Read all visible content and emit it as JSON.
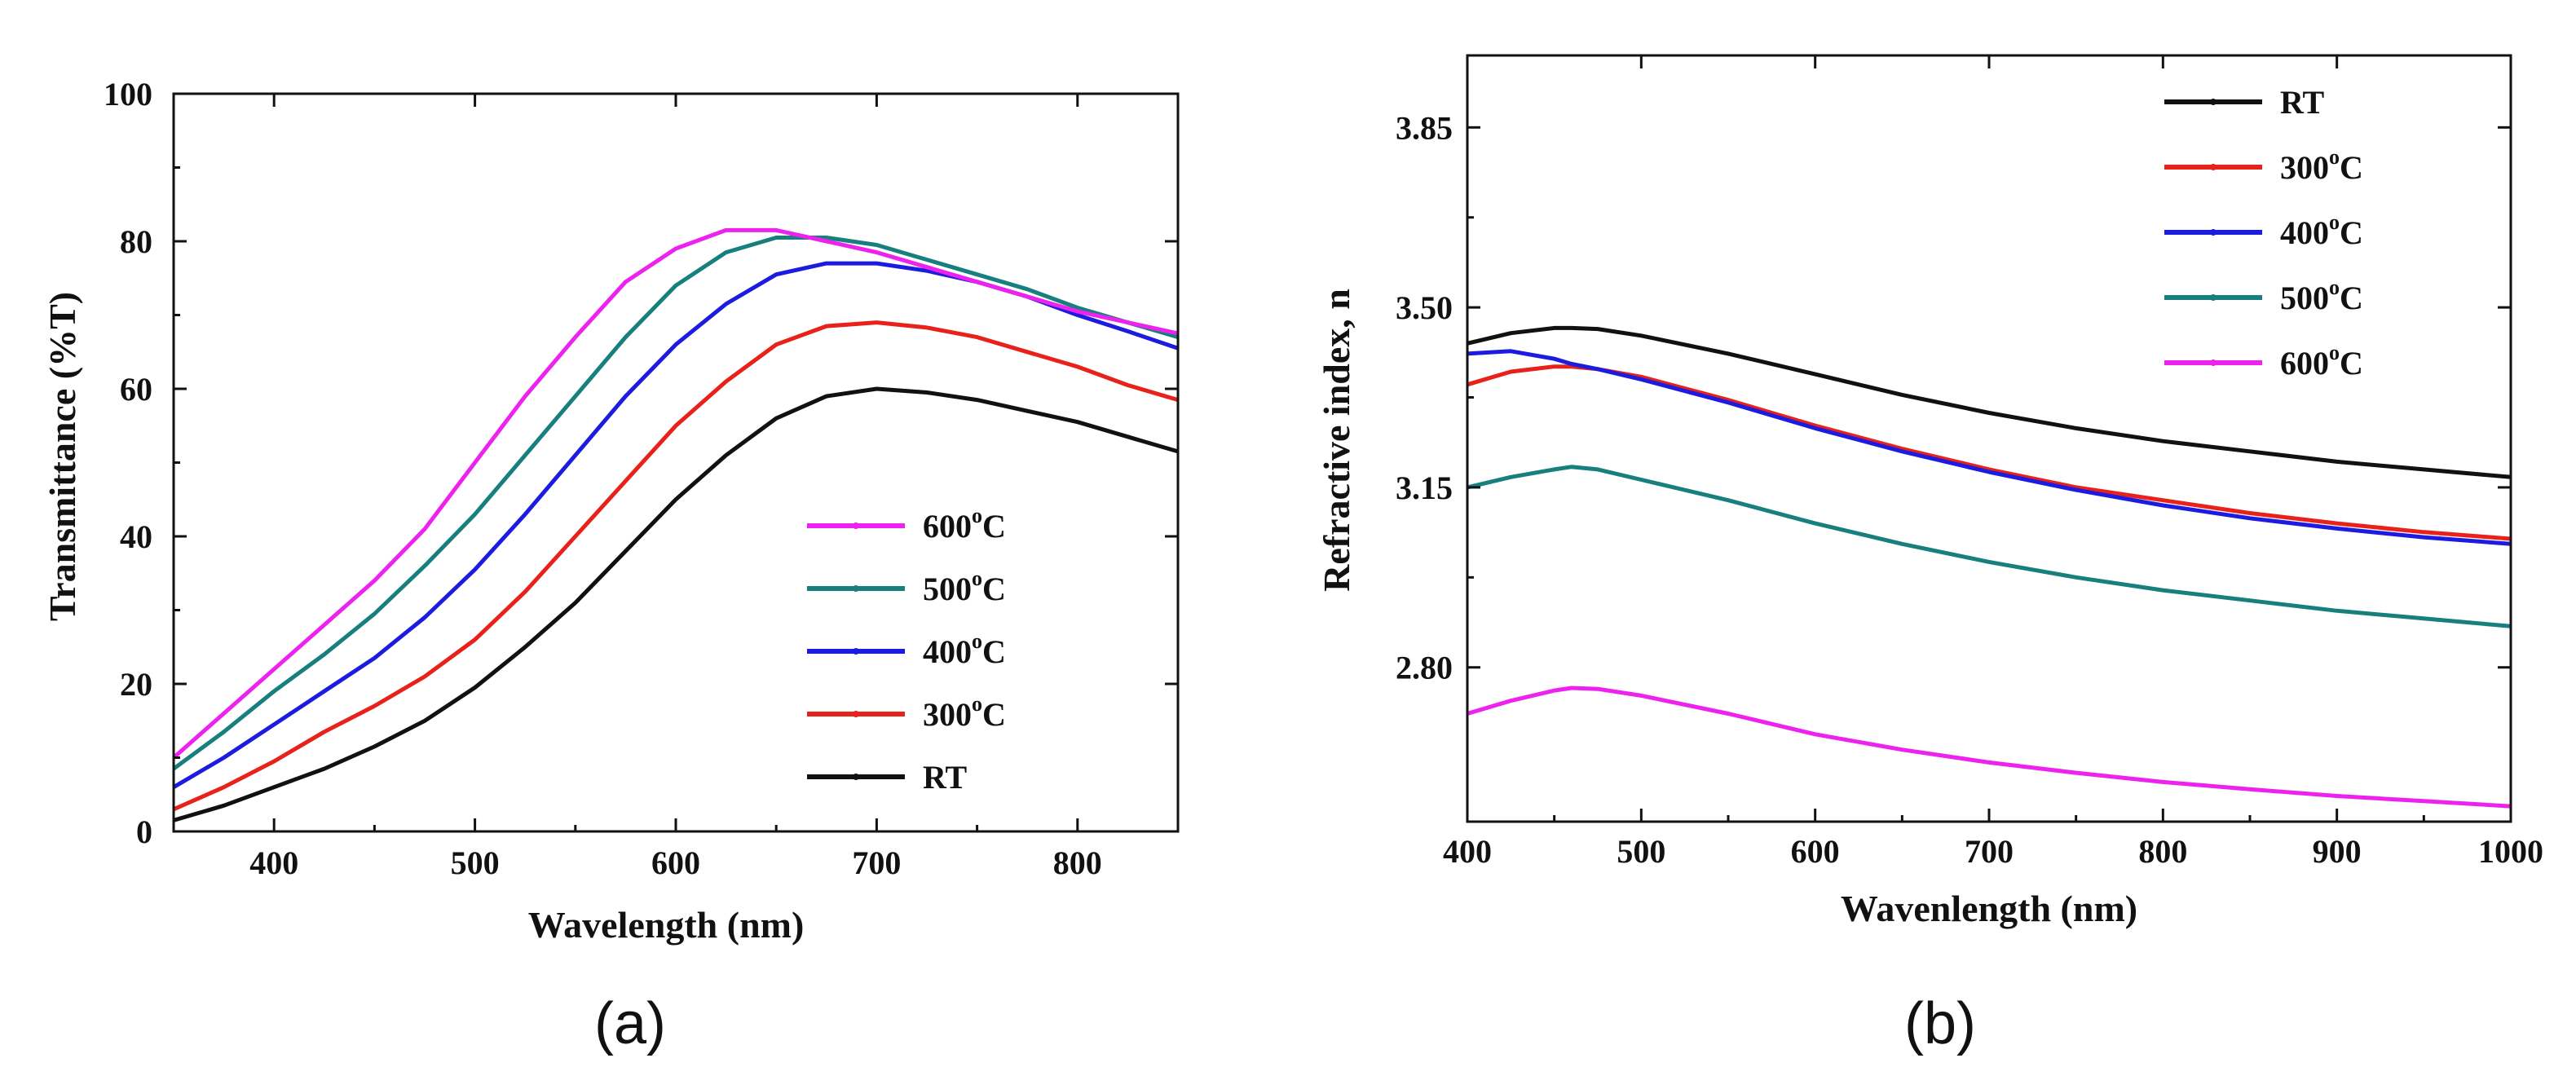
{
  "chart_data": [
    {
      "panel": "(a)",
      "type": "line",
      "xlabel": "Wavelength (nm)",
      "ylabel": "Transmittance (%T)",
      "xlim": [
        350,
        850
      ],
      "ylim": [
        0,
        100
      ],
      "xticks": [
        400,
        500,
        600,
        700,
        800
      ],
      "yticks": [
        0,
        20,
        40,
        60,
        80,
        100
      ],
      "legend_position": "lower-right",
      "legend_order": [
        "600",
        "500",
        "400",
        "300",
        "RT"
      ],
      "series": [
        {
          "key": "RT",
          "name": "RT",
          "sup": "",
          "unit": "",
          "color": "#111111",
          "x": [
            350,
            375,
            400,
            425,
            450,
            475,
            500,
            525,
            550,
            575,
            600,
            625,
            650,
            675,
            700,
            725,
            750,
            775,
            800,
            825,
            850
          ],
          "y": [
            1.5,
            3.5,
            6,
            8.5,
            11.5,
            15,
            19.5,
            25,
            31,
            38,
            45,
            51,
            56,
            59,
            60,
            59.5,
            58.5,
            57,
            55.5,
            53.5,
            51.5
          ]
        },
        {
          "key": "300",
          "name": "300",
          "sup": "o",
          "unit": "C",
          "color": "#e8211a",
          "x": [
            350,
            375,
            400,
            425,
            450,
            475,
            500,
            525,
            550,
            575,
            600,
            625,
            650,
            675,
            700,
            725,
            750,
            775,
            800,
            825,
            850
          ],
          "y": [
            3,
            6,
            9.5,
            13.5,
            17,
            21,
            26,
            32.5,
            40,
            47.5,
            55,
            61,
            66,
            68.5,
            69,
            68.3,
            67,
            65,
            63,
            60.5,
            58.5
          ]
        },
        {
          "key": "400",
          "name": "400",
          "sup": "o",
          "unit": "C",
          "color": "#1c1ce0",
          "x": [
            350,
            375,
            400,
            425,
            450,
            475,
            500,
            525,
            550,
            575,
            600,
            625,
            650,
            675,
            700,
            725,
            750,
            775,
            800,
            825,
            850
          ],
          "y": [
            6,
            10,
            14.5,
            19,
            23.5,
            29,
            35.5,
            43,
            51,
            59,
            66,
            71.5,
            75.5,
            77,
            77,
            76,
            74.5,
            72.5,
            70,
            67.8,
            65.5
          ]
        },
        {
          "key": "500",
          "name": "500",
          "sup": "o",
          "unit": "C",
          "color": "#17807f",
          "x": [
            350,
            375,
            400,
            425,
            450,
            475,
            500,
            525,
            550,
            575,
            600,
            625,
            650,
            675,
            700,
            725,
            750,
            775,
            800,
            825,
            850
          ],
          "y": [
            8.5,
            13.5,
            19,
            24,
            29.5,
            36,
            43,
            51,
            59,
            67,
            74,
            78.5,
            80.5,
            80.5,
            79.5,
            77.5,
            75.5,
            73.5,
            71,
            69,
            67
          ]
        },
        {
          "key": "600",
          "name": "600",
          "sup": "o",
          "unit": "C",
          "color": "#ee22ee",
          "x": [
            350,
            375,
            400,
            425,
            450,
            475,
            500,
            525,
            550,
            575,
            600,
            625,
            650,
            675,
            700,
            725,
            750,
            775,
            800,
            825,
            850
          ],
          "y": [
            10,
            16,
            22,
            28,
            34,
            41,
            50,
            59,
            67,
            74.5,
            79,
            81.5,
            81.5,
            80,
            78.5,
            76.5,
            74.5,
            72.5,
            70.5,
            69,
            67.5
          ]
        }
      ]
    },
    {
      "panel": "(b)",
      "type": "line",
      "xlabel": "Wavenlength (nm)",
      "ylabel": "Refractive index, n",
      "xlim": [
        400,
        1000
      ],
      "ylim": [
        2.5,
        3.99
      ],
      "xticks": [
        400,
        500,
        600,
        700,
        800,
        900,
        1000
      ],
      "yticks": [
        2.8,
        3.15,
        3.5,
        3.85
      ],
      "ytick_labels": [
        "2.80",
        "3.15",
        "3.50",
        "3.85"
      ],
      "legend_position": "top-right",
      "legend_order": [
        "RT",
        "300",
        "400",
        "500",
        "600"
      ],
      "series": [
        {
          "key": "RT",
          "name": "RT",
          "sup": "",
          "unit": "",
          "color": "#111111",
          "x": [
            400,
            425,
            450,
            460,
            475,
            500,
            550,
            600,
            650,
            700,
            750,
            800,
            850,
            900,
            950,
            1000
          ],
          "y": [
            3.43,
            3.45,
            3.46,
            3.46,
            3.458,
            3.445,
            3.41,
            3.37,
            3.33,
            3.295,
            3.265,
            3.24,
            3.22,
            3.2,
            3.185,
            3.17
          ]
        },
        {
          "key": "300",
          "name": "300",
          "sup": "o",
          "unit": "C",
          "color": "#e8211a",
          "x": [
            400,
            425,
            450,
            460,
            475,
            500,
            550,
            600,
            650,
            700,
            750,
            800,
            850,
            900,
            950,
            1000
          ],
          "y": [
            3.35,
            3.375,
            3.385,
            3.385,
            3.38,
            3.365,
            3.32,
            3.27,
            3.225,
            3.185,
            3.15,
            3.125,
            3.1,
            3.08,
            3.063,
            3.05
          ]
        },
        {
          "key": "400",
          "name": "400",
          "sup": "o",
          "unit": "C",
          "color": "#1c1ce0",
          "x": [
            400,
            425,
            450,
            460,
            475,
            500,
            550,
            600,
            650,
            700,
            750,
            800,
            850,
            900,
            950,
            1000
          ],
          "y": [
            3.41,
            3.415,
            3.4,
            3.39,
            3.38,
            3.36,
            3.315,
            3.265,
            3.22,
            3.18,
            3.145,
            3.115,
            3.09,
            3.07,
            3.053,
            3.04
          ]
        },
        {
          "key": "500",
          "name": "500",
          "sup": "o",
          "unit": "C",
          "color": "#17807f",
          "x": [
            400,
            425,
            450,
            460,
            475,
            500,
            550,
            600,
            650,
            700,
            750,
            800,
            850,
            900,
            950,
            1000
          ],
          "y": [
            3.15,
            3.17,
            3.185,
            3.19,
            3.185,
            3.165,
            3.125,
            3.08,
            3.04,
            3.005,
            2.975,
            2.95,
            2.93,
            2.91,
            2.895,
            2.88
          ]
        },
        {
          "key": "600",
          "name": "600",
          "sup": "o",
          "unit": "C",
          "color": "#ee22ee",
          "x": [
            400,
            425,
            450,
            460,
            475,
            500,
            550,
            600,
            650,
            700,
            750,
            800,
            850,
            900,
            950,
            1000
          ],
          "y": [
            2.71,
            2.735,
            2.755,
            2.76,
            2.758,
            2.745,
            2.71,
            2.67,
            2.64,
            2.615,
            2.595,
            2.577,
            2.563,
            2.55,
            2.54,
            2.53
          ]
        }
      ]
    }
  ]
}
